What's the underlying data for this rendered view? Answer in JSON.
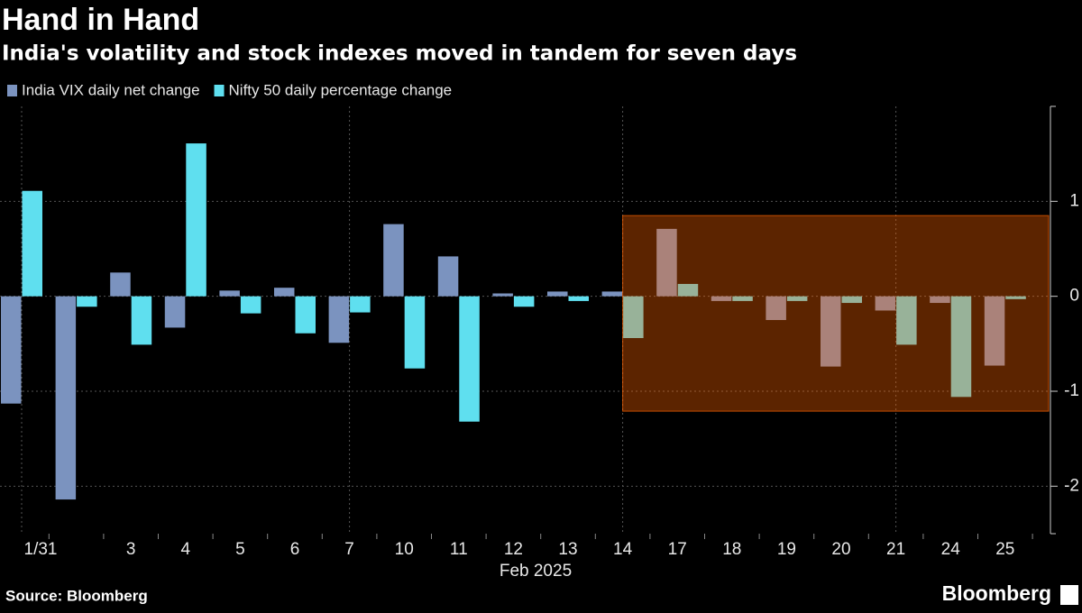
{
  "chart_data": {
    "type": "bar",
    "title": "Hand in Hand",
    "subtitle": "India's volatility and stock indexes moved in tandem for seven days",
    "x_label": "Feb 2025",
    "source": "Source: Bloomberg",
    "brand": "Bloomberg",
    "categories": [
      "1/31",
      null,
      "3",
      "4",
      "5",
      "6",
      "7",
      "10",
      "11",
      "12",
      "13",
      "14",
      "17",
      "18",
      "19",
      "20",
      "21",
      "24",
      "25"
    ],
    "series": [
      {
        "name": "India VIX daily net change",
        "color": "#7b93bf",
        "values": [
          -1.13,
          -2.14,
          0.25,
          -0.33,
          0.06,
          0.09,
          -0.49,
          0.76,
          0.42,
          0.03,
          0.05,
          0.05,
          0.71,
          -0.05,
          -0.25,
          -0.74,
          -0.15,
          -0.07,
          -0.73
        ]
      },
      {
        "name": "Nifty 50 daily percentage change",
        "color": "#5fdfef",
        "values": [
          1.11,
          -0.11,
          -0.51,
          1.61,
          -0.18,
          -0.39,
          -0.17,
          -0.76,
          -1.32,
          -0.11,
          -0.05,
          -0.44,
          0.13,
          -0.05,
          -0.05,
          -0.07,
          -0.51,
          -1.06,
          -0.03
        ]
      }
    ],
    "ylim": [
      -2.5,
      2.0
    ],
    "yticks": [
      -2,
      -1,
      0,
      1
    ],
    "grid": true,
    "highlight": {
      "start": "14",
      "ylim": [
        -1.21,
        0.85
      ],
      "color": "#ff6400"
    }
  }
}
